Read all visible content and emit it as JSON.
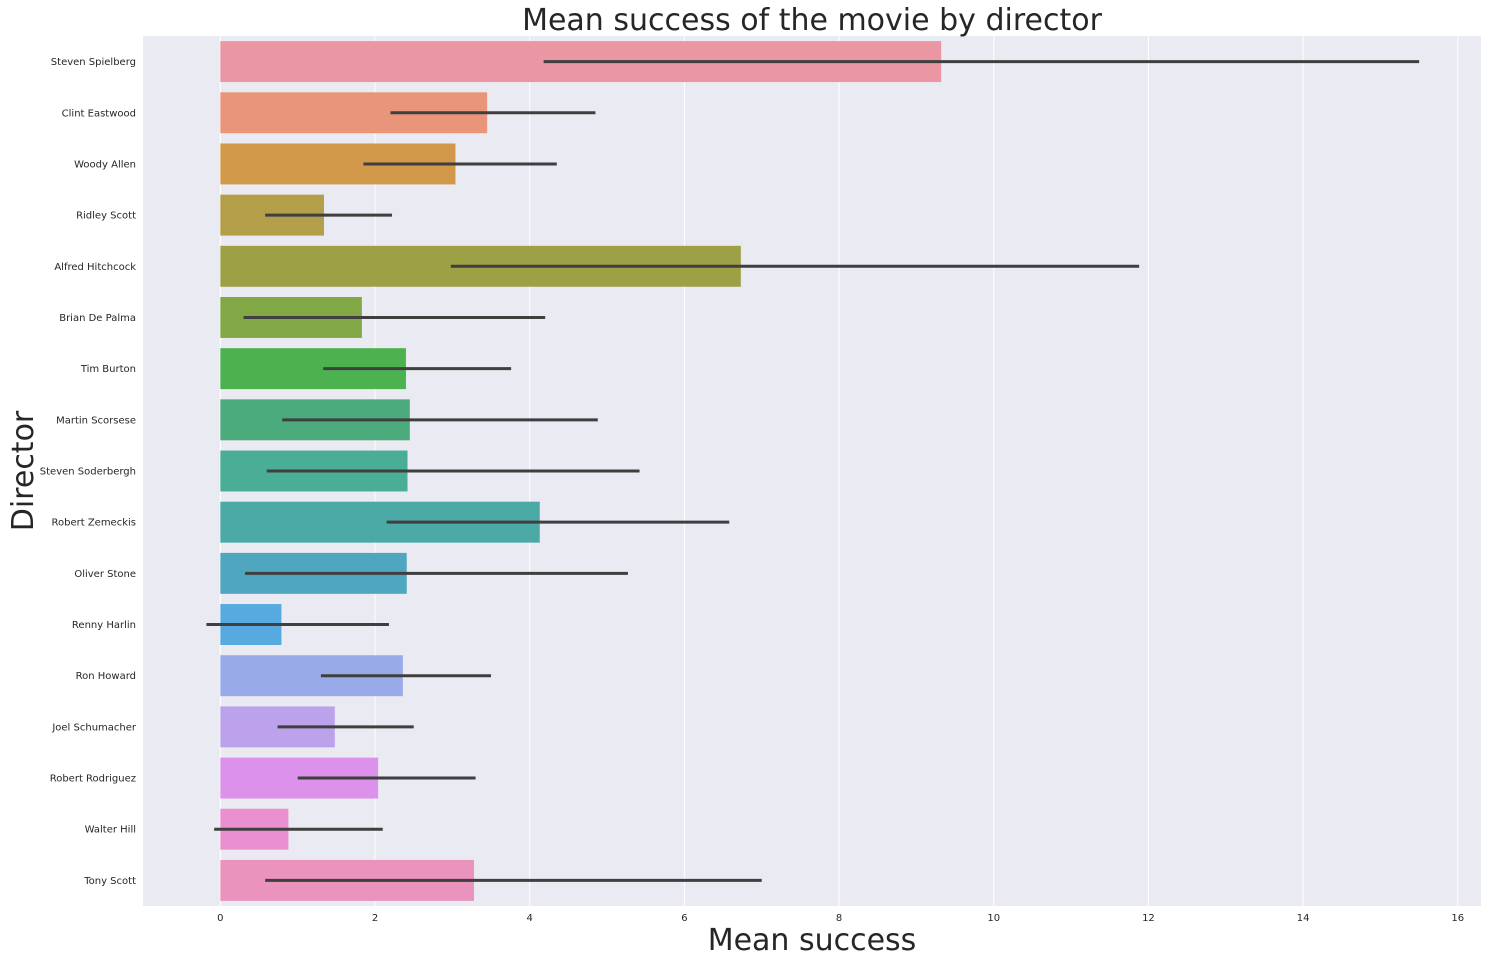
{
  "chart_data": {
    "type": "bar",
    "orientation": "horizontal",
    "title": "Mean success of the movie by director",
    "xlabel": "Mean success",
    "ylabel": "Director",
    "xlim": [
      -1,
      16.3
    ],
    "xticks": [
      0,
      2,
      4,
      6,
      8,
      10,
      12,
      14,
      16
    ],
    "grid": true,
    "legend": "none",
    "categories": [
      "Steven Spielberg",
      "Clint Eastwood",
      "Woody Allen",
      "Ridley Scott",
      "Alfred Hitchcock",
      "Brian De Palma",
      "Tim Burton",
      "Martin Scorsese",
      "Steven Soderbergh",
      "Robert Zemeckis",
      "Oliver Stone",
      "Renny Harlin",
      "Ron Howard",
      "Joel Schumacher",
      "Robert Rodriguez",
      "Walter Hill",
      "Tony Scott"
    ],
    "values": [
      9.32,
      3.45,
      3.04,
      1.34,
      6.73,
      1.83,
      2.4,
      2.45,
      2.42,
      4.13,
      2.41,
      0.79,
      2.36,
      1.48,
      2.04,
      0.88,
      3.28
    ],
    "error_low": [
      4.18,
      2.2,
      1.85,
      0.58,
      2.98,
      0.3,
      1.33,
      0.8,
      0.6,
      2.15,
      0.32,
      -0.18,
      1.3,
      0.74,
      1.0,
      -0.08,
      0.58
    ],
    "error_high": [
      15.5,
      4.85,
      4.35,
      2.22,
      11.88,
      4.2,
      3.76,
      4.88,
      5.42,
      6.58,
      5.27,
      2.18,
      3.5,
      2.5,
      3.3,
      2.1,
      7.0
    ],
    "colors": [
      "#ea96a3",
      "#e8957a",
      "#d3994b",
      "#b39e4a",
      "#9ea046",
      "#82a846",
      "#4cb250",
      "#4bab7c",
      "#4aae97",
      "#4ba9a6",
      "#4ea7bf",
      "#56aadf",
      "#98aae8",
      "#bba2ea",
      "#dc92ea",
      "#ea90d1",
      "#ea93bd"
    ]
  }
}
